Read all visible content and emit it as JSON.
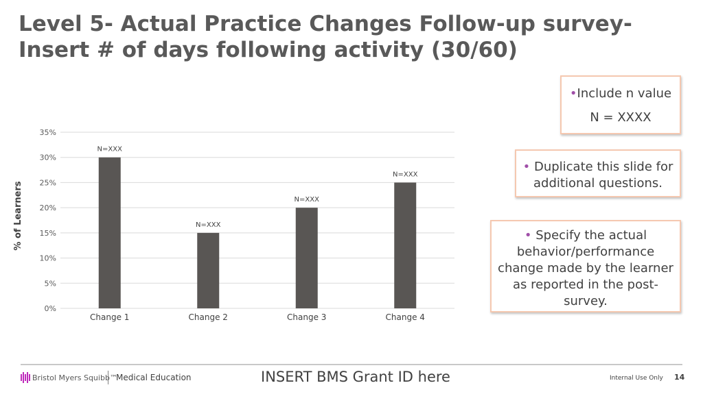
{
  "slide": {
    "title": "Level 5- Actual Practice Changes Follow-up survey-Insert # of days following activity (30/60)",
    "notes": {
      "n_value_bullet": "•",
      "n_value_line1": "Include n value",
      "n_value_line2": "N = XXXX",
      "duplicate_bullet": "•",
      "duplicate_text": "Duplicate this slide for additional questions.",
      "specify_bullet": "•",
      "specify_text": "Specify the actual behavior/performance change made by the learner as reported in the post-survey."
    },
    "footer": {
      "logo_text": "Bristol Myers Squibb",
      "trademark": "™",
      "department": "Medical Education",
      "grant": "INSERT BMS Grant ID here",
      "classification": "Internal Use Only",
      "page_number": "14"
    },
    "colors": {
      "bar": "#595654",
      "grid": "#d9d9d9",
      "note_border": "#f5c8b0",
      "bullet": "#a04fa8",
      "logo": "#be2bbb"
    }
  },
  "chart_data": {
    "type": "bar",
    "categories": [
      "Change 1",
      "Change 2",
      "Change 3",
      "Change 4"
    ],
    "values": [
      30,
      15,
      20,
      25
    ],
    "data_labels": [
      "N=XXX",
      "N=XXX",
      "N=XXX",
      "N=XXX"
    ],
    "ylabel": "% of Learners",
    "xlabel": "",
    "ylim": [
      0,
      35
    ],
    "yticks": [
      0,
      5,
      10,
      15,
      20,
      25,
      30,
      35
    ],
    "ytick_labels": [
      "0%",
      "5%",
      "10%",
      "15%",
      "20%",
      "25%",
      "30%",
      "35%"
    ],
    "grid": true,
    "legend": "none"
  }
}
